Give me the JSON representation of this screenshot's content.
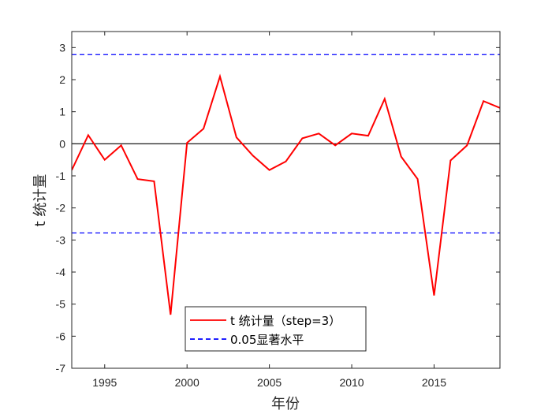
{
  "chart_data": {
    "type": "line",
    "xlabel": "年份",
    "ylabel": "t 统计量",
    "xlim": [
      1993,
      2019
    ],
    "ylim": [
      -7,
      3.5
    ],
    "xticks": [
      1995,
      2000,
      2005,
      2010,
      2015
    ],
    "yticks": [
      -7,
      -6,
      -5,
      -4,
      -3,
      -2,
      -1,
      0,
      1,
      2,
      3
    ],
    "x": [
      1993,
      1994,
      1995,
      1996,
      1997,
      1998,
      1999,
      2000,
      2001,
      2002,
      2003,
      2004,
      2005,
      2006,
      2007,
      2008,
      2009,
      2010,
      2011,
      2012,
      2013,
      2014,
      2015,
      2016,
      2017,
      2018,
      2019
    ],
    "series": [
      {
        "name": "t 统计量（step=3）",
        "color": "#ff0000",
        "style": "solid",
        "values": [
          -0.82,
          0.27,
          -0.5,
          -0.05,
          -1.1,
          -1.17,
          -5.33,
          0.03,
          0.47,
          2.1,
          0.2,
          -0.37,
          -0.82,
          -0.55,
          0.17,
          0.32,
          -0.05,
          0.32,
          0.25,
          1.4,
          -0.4,
          -1.1,
          -4.73,
          -0.52,
          -0.05,
          1.33,
          1.12
        ]
      }
    ],
    "reference_lines": [
      {
        "name": "0.05显著水平",
        "color": "#0000ff",
        "style": "dashed",
        "y": [
          2.78,
          -2.78
        ]
      },
      {
        "color": "#000000",
        "style": "solid",
        "y": [
          0
        ]
      }
    ],
    "legend": {
      "placement": "bottom-center",
      "entries": [
        "t 统计量（step=3）",
        "0.05显著水平"
      ]
    },
    "grid": false
  }
}
